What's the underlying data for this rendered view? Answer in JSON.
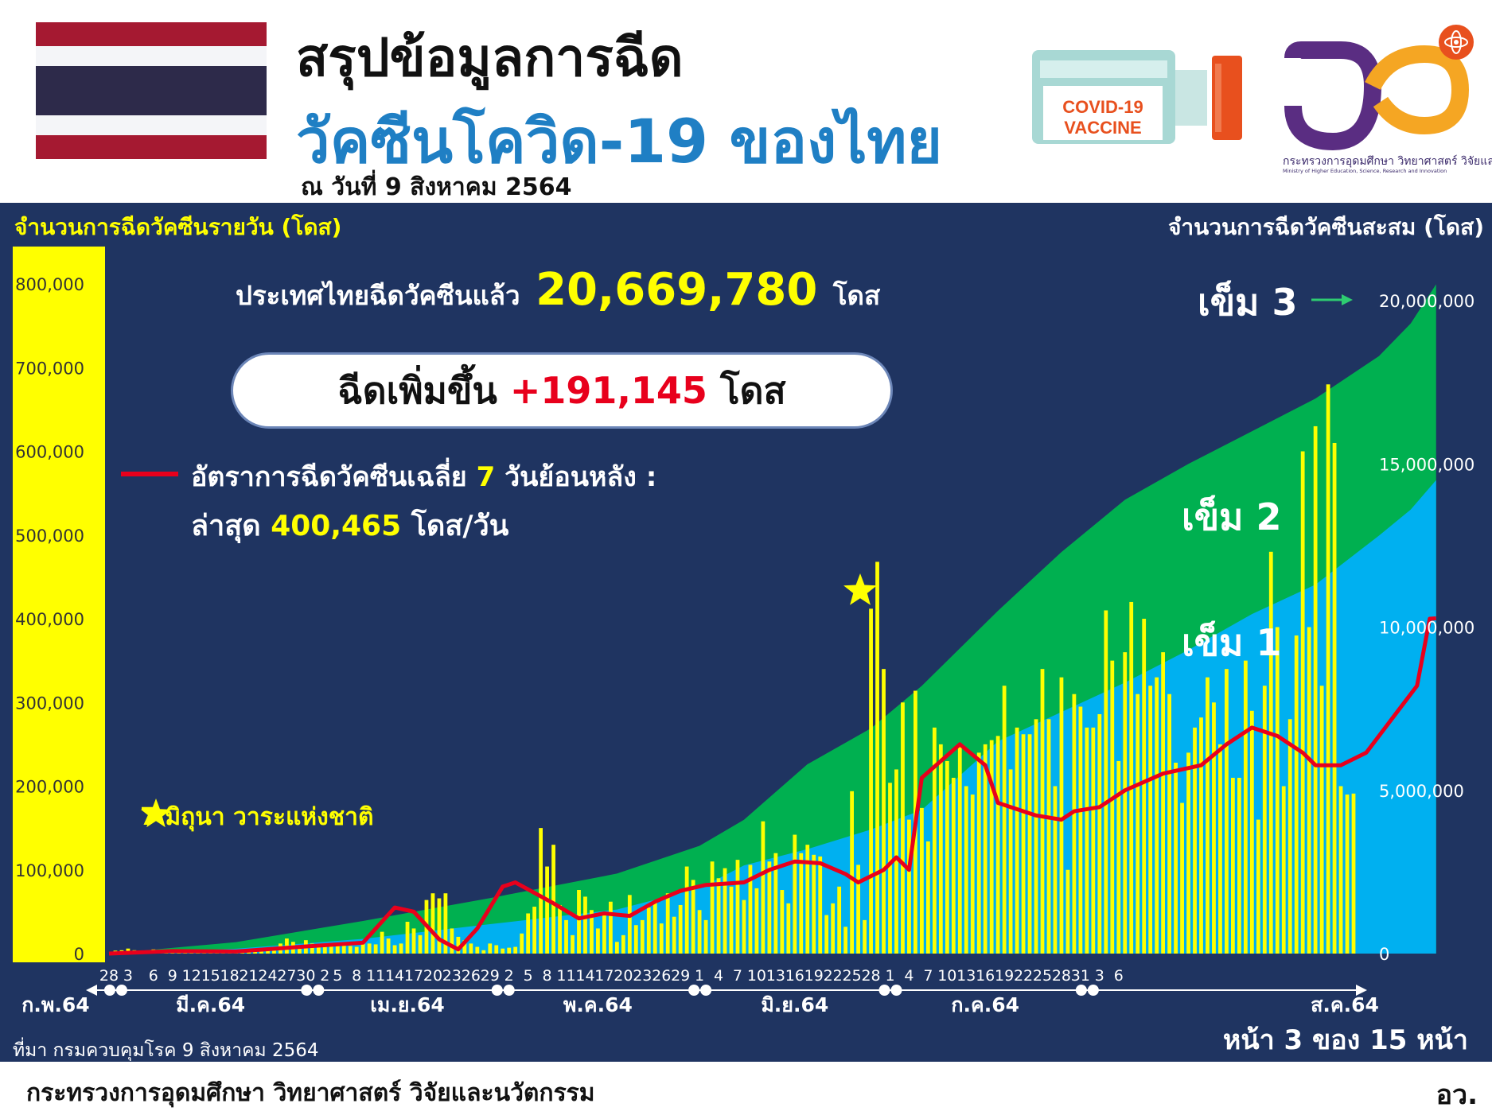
{
  "header": {
    "title_line1": "สรุปข้อมูลการฉีด",
    "title_line2": "วัคซีนโควิด-19 ของไทย",
    "as_of": "ณ วันที่ 9 สิงหาคม 2564",
    "vaccine_label_line1": "COVID-19",
    "vaccine_label_line2": "VACCINE",
    "ministry_logo_text": "กระทรวงการอุดมศึกษา วิทยาศาสตร์ วิจัยและนวัตกรรม",
    "ministry_logo_text_en": "Ministry of Higher Education, Science, Research and Innovation"
  },
  "colors": {
    "panel": "#1f3461",
    "daily_bar": "#ffff00",
    "dose1": "#00b0f0",
    "dose2": "#00b050",
    "average_line": "#e8001c",
    "title_blue": "#1f7fc4"
  },
  "summary": {
    "total_prefix": "ประเทศไทยฉีดวัคซีนแล้ว",
    "total_value": "20,669,780",
    "total_unit": "โดส",
    "increase_prefix": "ฉีดเพิ่มขึ้น",
    "increase_value": "+191,145",
    "increase_unit": "โดส",
    "avg_label_a": "อัตราการฉีดวัคซีนเฉลี่ย",
    "avg_label_days": "7",
    "avg_label_b": "วันย้อนหลัง :",
    "avg_latest_prefix": "ล่าสุด",
    "avg_latest_value": "400,465",
    "avg_latest_unit": "โดส/วัน"
  },
  "annotations": {
    "star_note": "7 มิถุนา วาระแห่งชาติ",
    "dose3": "เข็ม 3",
    "dose2": "เข็ม 2",
    "dose1": "เข็ม 1"
  },
  "source": "ที่มา กรมควบคุมโรค 9 สิงหาคม 2564",
  "page_number": "หน้า 3 ของ 15 หน้า",
  "footer": {
    "ministry": "กระทรวงการอุดมศึกษา วิทยาศาสตร์ วิจัยและนวัตกรรม",
    "abbr": "อว."
  },
  "chart_data": {
    "type": "bar",
    "ylabel_left": "จำนวนการฉีดวัคซีนรายวัน (โดส)",
    "ylabel_right": "จำนวนการฉีดวัคซีนสะสม (โดส)",
    "ylim_left": [
      0,
      800000
    ],
    "ylim_right": [
      0,
      20500000
    ],
    "yticks_left": [
      "800,000",
      "700,000",
      "600,000",
      "500,000",
      "400,000",
      "300,000",
      "200,000",
      "100,000",
      "0"
    ],
    "yticks_right": [
      "20,000,000",
      "15,000,000",
      "10,000,000",
      "5,000,000",
      "0"
    ],
    "x_day_labels": [
      "28",
      "3",
      "6",
      "9",
      "12",
      "15",
      "18",
      "21",
      "24",
      "27",
      "30",
      "2",
      "5",
      "8",
      "11",
      "14",
      "17",
      "20",
      "23",
      "26",
      "29",
      "2",
      "5",
      "8",
      "11",
      "14",
      "17",
      "20",
      "23",
      "26",
      "29",
      "1",
      "4",
      "7",
      "10",
      "13",
      "16",
      "19",
      "22",
      "25",
      "28",
      "1",
      "4",
      "7",
      "10",
      "13",
      "16",
      "19",
      "22",
      "25",
      "28",
      "31",
      "3",
      "6"
    ],
    "x_month_labels": [
      "ก.พ.64",
      "มี.ค.64",
      "เม.ย.64",
      "พ.ค.64",
      "มิ.ย.64",
      "ก.ค.64",
      "ส.ค.64"
    ],
    "start_date": "2021-02-28",
    "grid": false,
    "legend": "none",
    "series": [
      {
        "name": "จำนวนการฉีดวัคซีนรายวัน (โดส)",
        "kind": "bar",
        "axis": "left",
        "values": [
          0,
          3500,
          4000,
          6000,
          4000,
          3000,
          2000,
          5000,
          3500,
          4500,
          3000,
          2000,
          2500,
          2000,
          3000,
          1500,
          4000,
          2500,
          3000,
          2000,
          3000,
          1500,
          2000,
          4000,
          6000,
          5000,
          8000,
          12000,
          18000,
          14000,
          10000,
          16000,
          12000,
          11000,
          9000,
          12000,
          10000,
          11000,
          9000,
          8000,
          13000,
          12000,
          11000,
          26000,
          18000,
          10000,
          12000,
          38000,
          30000,
          22000,
          64000,
          72000,
          66000,
          72000,
          30000,
          20000,
          16000,
          12000,
          8000,
          4000,
          12000,
          10000,
          6000,
          7000,
          8000,
          24000,
          48000,
          56000,
          150000,
          104000,
          130000,
          58000,
          40000,
          22000,
          76000,
          68000,
          52000,
          30000,
          46000,
          62000,
          14000,
          22000,
          70000,
          34000,
          40000,
          55000,
          62000,
          36000,
          72000,
          44000,
          58000,
          104000,
          88000,
          52000,
          40000,
          110000,
          90000,
          102000,
          80000,
          112000,
          64000,
          106000,
          78000,
          158000,
          110000,
          120000,
          76000,
          60000,
          142000,
          120000,
          130000,
          118000,
          116000,
          46000,
          60000,
          80000,
          32000,
          194000,
          106000,
          40000,
          412000,
          468000,
          340000,
          204000,
          220000,
          300000,
          160000,
          314000,
          174000,
          134000,
          270000,
          250000,
          230000,
          210000,
          250000,
          200000,
          190000,
          240000,
          250000,
          255000,
          260000,
          320000,
          220000,
          270000,
          262000,
          262000,
          280000,
          340000,
          280000,
          200000,
          330000,
          100000,
          310000,
          295000,
          270000,
          270000,
          286000,
          410000,
          350000,
          230000,
          360000,
          420000,
          310000,
          400000,
          320000,
          330000,
          360000,
          310000,
          228000,
          180000,
          240000,
          270000,
          282000,
          330000,
          300000,
          250000,
          340000,
          210000,
          210000,
          350000,
          290000,
          160000,
          320000,
          480000,
          390000,
          200000,
          280000,
          380000,
          600000,
          390000,
          630000,
          320000,
          680000,
          610000,
          200000,
          190000,
          191145
        ]
      },
      {
        "name": "เข็ม 1",
        "kind": "area",
        "axis": "right",
        "points": [
          [
            0,
            0
          ],
          [
            20,
            150000
          ],
          [
            40,
            450000
          ],
          [
            60,
            900000
          ],
          [
            80,
            1350000
          ],
          [
            93,
            2000000
          ],
          [
            100,
            2700000
          ],
          [
            110,
            3200000
          ],
          [
            120,
            3800000
          ],
          [
            128,
            4400000
          ],
          [
            140,
            6500000
          ],
          [
            150,
            7400000
          ],
          [
            160,
            8300000
          ],
          [
            170,
            9300000
          ],
          [
            180,
            10400000
          ],
          [
            190,
            11300000
          ],
          [
            200,
            12800000
          ],
          [
            205,
            13600000
          ],
          [
            209,
            14500000
          ]
        ]
      },
      {
        "name": "เข็ม 2",
        "kind": "area",
        "axis": "right",
        "points": [
          [
            0,
            0
          ],
          [
            20,
            350000
          ],
          [
            40,
            1000000
          ],
          [
            60,
            1700000
          ],
          [
            80,
            2450000
          ],
          [
            93,
            3300000
          ],
          [
            100,
            4100000
          ],
          [
            110,
            5800000
          ],
          [
            120,
            6900000
          ],
          [
            128,
            8200000
          ],
          [
            140,
            10500000
          ],
          [
            150,
            12300000
          ],
          [
            160,
            13900000
          ],
          [
            170,
            15000000
          ],
          [
            180,
            16000000
          ],
          [
            190,
            17000000
          ],
          [
            200,
            18300000
          ],
          [
            205,
            19300000
          ],
          [
            209,
            20500000
          ]
        ]
      },
      {
        "name": "อัตราการฉีดวัคซีนเฉลี่ย 7 วันย้อนหลัง",
        "kind": "line",
        "axis": "left",
        "points": [
          [
            0,
            0
          ],
          [
            10,
            3000
          ],
          [
            20,
            2500
          ],
          [
            30,
            8000
          ],
          [
            40,
            13000
          ],
          [
            45,
            55000
          ],
          [
            48,
            50000
          ],
          [
            52,
            17000
          ],
          [
            55,
            5000
          ],
          [
            58,
            30000
          ],
          [
            62,
            80000
          ],
          [
            64,
            85000
          ],
          [
            70,
            60000
          ],
          [
            74,
            42000
          ],
          [
            78,
            48000
          ],
          [
            82,
            45000
          ],
          [
            86,
            62000
          ],
          [
            90,
            75000
          ],
          [
            94,
            82000
          ],
          [
            100,
            85000
          ],
          [
            104,
            100000
          ],
          [
            108,
            110000
          ],
          [
            112,
            108000
          ],
          [
            116,
            95000
          ],
          [
            118,
            85000
          ],
          [
            122,
            100000
          ],
          [
            124,
            115000
          ],
          [
            126,
            100000
          ],
          [
            128,
            210000
          ],
          [
            134,
            250000
          ],
          [
            138,
            225000
          ],
          [
            140,
            180000
          ],
          [
            144,
            170000
          ],
          [
            146,
            165000
          ],
          [
            150,
            160000
          ],
          [
            152,
            170000
          ],
          [
            156,
            175000
          ],
          [
            160,
            195000
          ],
          [
            166,
            215000
          ],
          [
            172,
            225000
          ],
          [
            176,
            250000
          ],
          [
            180,
            270000
          ],
          [
            184,
            260000
          ],
          [
            188,
            240000
          ],
          [
            190,
            225000
          ],
          [
            194,
            225000
          ],
          [
            198,
            240000
          ],
          [
            200,
            260000
          ],
          [
            203,
            290000
          ],
          [
            206,
            320000
          ],
          [
            208,
            400000
          ],
          [
            209,
            400465
          ]
        ]
      }
    ]
  }
}
